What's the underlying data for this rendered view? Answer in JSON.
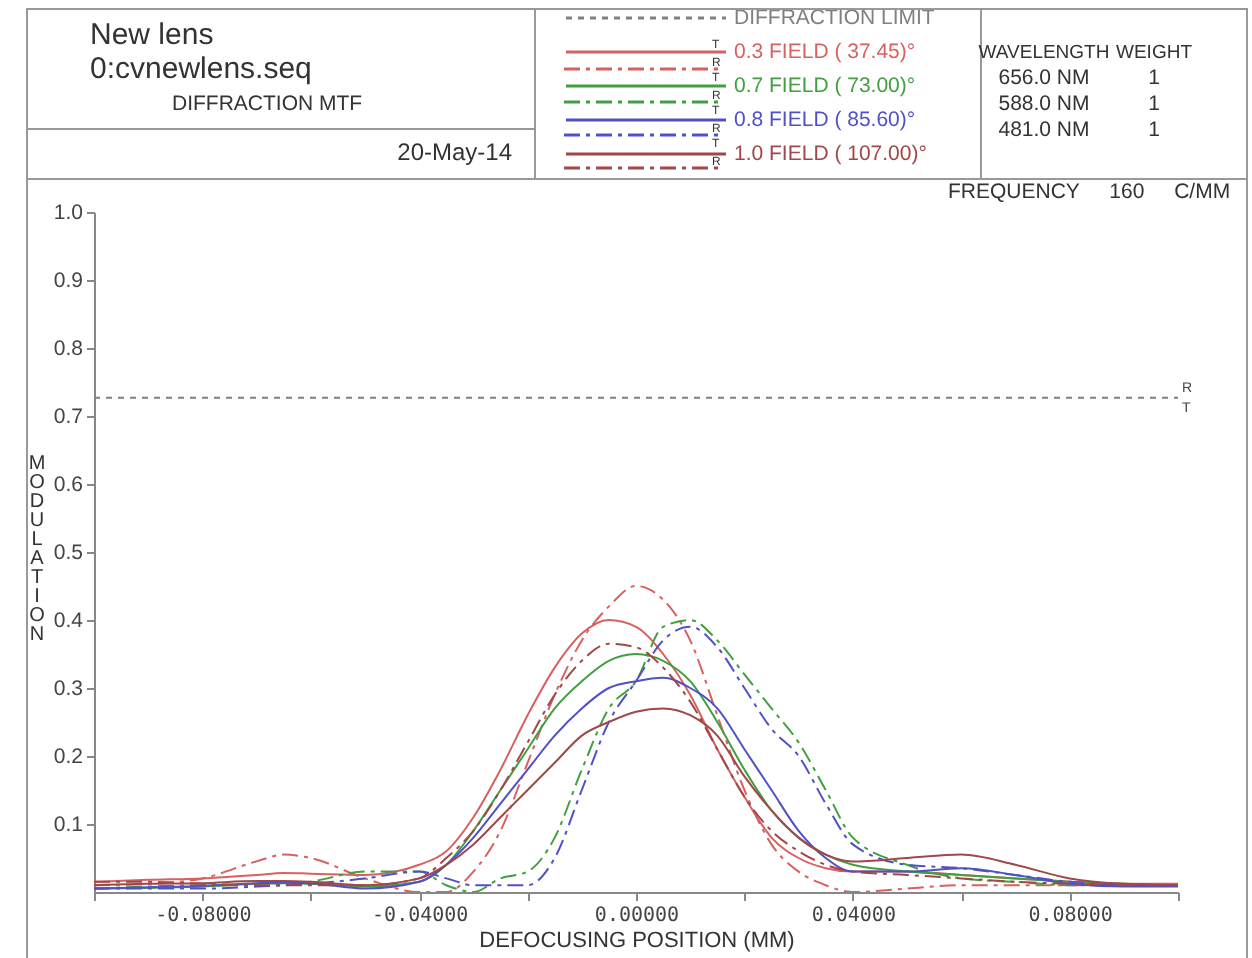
{
  "chart_data": {
    "type": "line",
    "title": "New lens",
    "subtitle": "0:cvnewlens.seq",
    "xlabel": "DEFOCUSING POSITION (MM)",
    "ylabel": "MODULATION",
    "x": [
      -0.1,
      -0.09,
      -0.08,
      -0.07,
      -0.065,
      -0.06,
      -0.05,
      -0.04,
      -0.035,
      -0.03,
      -0.025,
      -0.02,
      -0.015,
      -0.01,
      -0.005,
      0,
      0.005,
      0.01,
      0.015,
      0.02,
      0.025,
      0.03,
      0.035,
      0.04,
      0.05,
      0.06,
      0.07,
      0.08,
      0.09,
      0.1
    ],
    "series": [
      {
        "name": "DIFFRACTION LIMIT",
        "color": "#808080",
        "line_style": "dotted",
        "x": [
          -0.1,
          0.1
        ],
        "values": [
          0.727,
          0.727
        ]
      },
      {
        "name": "0.3 FIELD (  37.45)°",
        "color": "#d96060",
        "line_style": "solid",
        "values": [
          0.015,
          0.018,
          0.02,
          0.025,
          0.028,
          0.027,
          0.025,
          0.04,
          0.06,
          0.11,
          0.18,
          0.26,
          0.33,
          0.38,
          0.4,
          0.39,
          0.35,
          0.29,
          0.21,
          0.14,
          0.08,
          0.05,
          0.035,
          0.03,
          0.03,
          0.025,
          0.02,
          0.015,
          0.012,
          0.012
        ]
      },
      {
        "color": "#d96060",
        "line_style": "dashed",
        "values": [
          0.01,
          0.012,
          0.02,
          0.045,
          0.055,
          0.05,
          0.02,
          0.0,
          0.0,
          0.03,
          0.09,
          0.19,
          0.29,
          0.37,
          0.42,
          0.45,
          0.43,
          0.37,
          0.26,
          0.15,
          0.07,
          0.03,
          0.01,
          0.0,
          0.005,
          0.01,
          0.01,
          0.01,
          0.01,
          0.01
        ]
      },
      {
        "name": "0.7 FIELD (  73.00)°",
        "color": "#40a040",
        "line_style": "solid",
        "values": [
          0.005,
          0.006,
          0.008,
          0.012,
          0.013,
          0.012,
          0.008,
          0.015,
          0.04,
          0.09,
          0.15,
          0.21,
          0.27,
          0.31,
          0.34,
          0.35,
          0.34,
          0.31,
          0.25,
          0.18,
          0.12,
          0.08,
          0.055,
          0.04,
          0.03,
          0.025,
          0.02,
          0.015,
          0.012,
          0.01
        ]
      },
      {
        "color": "#40a040",
        "line_style": "dashed",
        "values": [
          0.005,
          0.008,
          0.01,
          0.01,
          0.01,
          0.015,
          0.03,
          0.03,
          0.01,
          0.0,
          0.02,
          0.03,
          0.08,
          0.18,
          0.27,
          0.31,
          0.39,
          0.4,
          0.37,
          0.32,
          0.27,
          0.22,
          0.15,
          0.08,
          0.04,
          0.02,
          0.015,
          0.01,
          0.01,
          0.01
        ]
      },
      {
        "name": "0.8 FIELD (  85.60)°",
        "color": "#5050c8",
        "line_style": "solid",
        "values": [
          0.005,
          0.007,
          0.009,
          0.013,
          0.014,
          0.013,
          0.005,
          0.015,
          0.04,
          0.08,
          0.13,
          0.18,
          0.23,
          0.27,
          0.3,
          0.31,
          0.315,
          0.3,
          0.27,
          0.21,
          0.15,
          0.09,
          0.05,
          0.03,
          0.03,
          0.035,
          0.025,
          0.012,
          0.008,
          0.008
        ]
      },
      {
        "color": "#5050c8",
        "line_style": "dashed",
        "values": [
          0.005,
          0.005,
          0.005,
          0.008,
          0.01,
          0.012,
          0.02,
          0.03,
          0.02,
          0.01,
          0.01,
          0.01,
          0.05,
          0.15,
          0.25,
          0.31,
          0.37,
          0.39,
          0.36,
          0.3,
          0.24,
          0.2,
          0.13,
          0.07,
          0.04,
          0.035,
          0.025,
          0.015,
          0.01,
          0.01
        ]
      },
      {
        "name": "1.0 FIELD ( 107.00)°",
        "color": "#a04848",
        "line_style": "solid",
        "values": [
          0.01,
          0.012,
          0.013,
          0.016,
          0.016,
          0.015,
          0.01,
          0.02,
          0.04,
          0.07,
          0.11,
          0.15,
          0.19,
          0.23,
          0.25,
          0.265,
          0.27,
          0.26,
          0.23,
          0.17,
          0.12,
          0.08,
          0.055,
          0.045,
          0.05,
          0.055,
          0.04,
          0.02,
          0.012,
          0.01
        ]
      },
      {
        "color": "#a04848",
        "line_style": "dashed",
        "values": [
          0.015,
          0.015,
          0.012,
          0.01,
          0.01,
          0.01,
          0.01,
          0.02,
          0.05,
          0.09,
          0.15,
          0.22,
          0.29,
          0.34,
          0.365,
          0.36,
          0.33,
          0.28,
          0.21,
          0.14,
          0.09,
          0.06,
          0.04,
          0.03,
          0.025,
          0.02,
          0.015,
          0.012,
          0.01,
          0.01
        ]
      }
    ],
    "xlim": [
      -0.1,
      0.1
    ],
    "xticks": [
      {
        "value": -0.1,
        "label": null
      },
      {
        "value": -0.08,
        "label": "-0.08000"
      },
      {
        "value": -0.06,
        "label": null
      },
      {
        "value": -0.04,
        "label": "-0.04000"
      },
      {
        "value": -0.02,
        "label": null
      },
      {
        "value": 0,
        "label": "0.00000"
      },
      {
        "value": 0.02,
        "label": null
      },
      {
        "value": 0.04,
        "label": "0.04000"
      },
      {
        "value": 0.06,
        "label": null
      },
      {
        "value": 0.08,
        "label": "0.08000"
      },
      {
        "value": 0.1,
        "label": null
      }
    ],
    "ylim": [
      0,
      1
    ],
    "yticks": [
      {
        "value": 0.1,
        "label": "0.1"
      },
      {
        "value": 0.2,
        "label": "0.2"
      },
      {
        "value": 0.3,
        "label": "0.3"
      },
      {
        "value": 0.4,
        "label": "0.4"
      },
      {
        "value": 0.5,
        "label": "0.5"
      },
      {
        "value": 0.6,
        "label": "0.6"
      },
      {
        "value": 0.7,
        "label": "0.7"
      },
      {
        "value": 0.8,
        "label": "0.8"
      },
      {
        "value": 0.9,
        "label": "0.9"
      },
      {
        "value": 1,
        "label": "1.0"
      }
    ],
    "grid": false,
    "legend": "top",
    "annotations": [
      "DIFFRACTION MTF",
      "20-May-14",
      "WAVELENGTH",
      "WEIGHT",
      "656.0 NM",
      "1",
      "588.0 NM",
      "1",
      "481.0 NM",
      "1",
      "FREQUENCY 160 C/MM",
      "R",
      "T"
    ]
  }
}
